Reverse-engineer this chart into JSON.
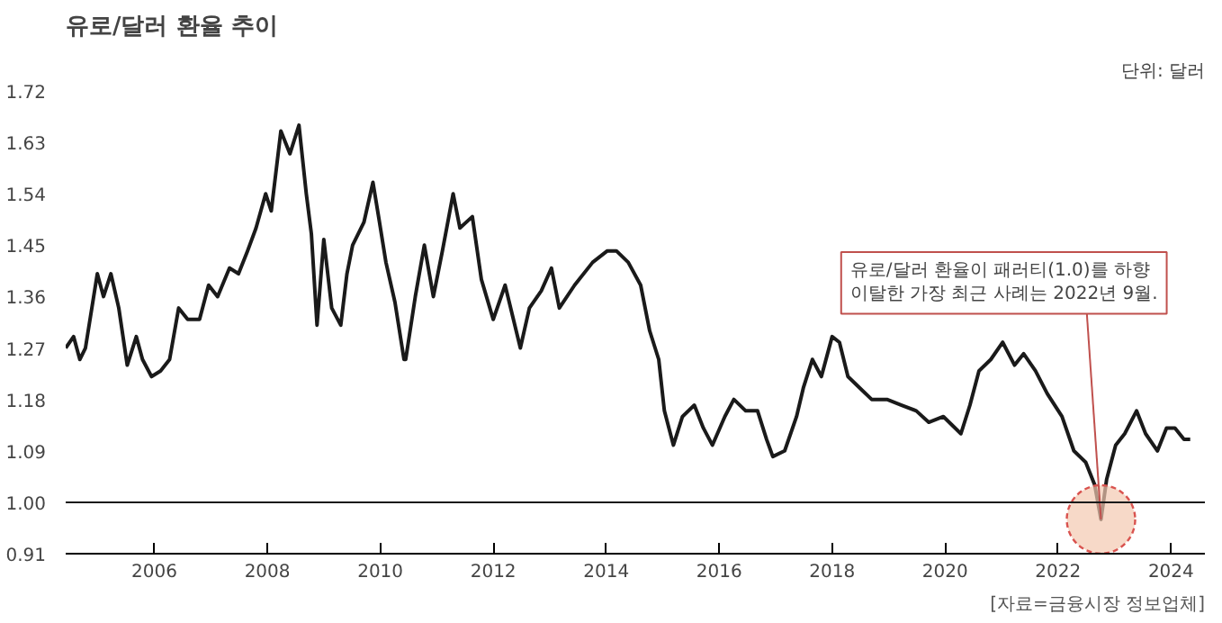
{
  "chart_data": {
    "type": "line",
    "title": "유로/달러 환율 추이",
    "ylabel": "단위: 달러",
    "x": [
      2004.43,
      2004.57,
      2004.68,
      2004.78,
      2004.99,
      2005.1,
      2005.23,
      2005.37,
      2005.52,
      2005.68,
      2005.79,
      2005.95,
      2006.11,
      2006.27,
      2006.43,
      2006.59,
      2006.8,
      2006.96,
      2007.12,
      2007.33,
      2007.49,
      2007.65,
      2007.8,
      2007.97,
      2008.07,
      2008.24,
      2008.4,
      2008.56,
      2008.69,
      2008.78,
      2008.88,
      2009.0,
      2009.14,
      2009.3,
      2009.41,
      2009.51,
      2009.71,
      2009.87,
      2009.97,
      2010.1,
      2010.26,
      2010.42,
      2010.45,
      2010.62,
      2010.78,
      2010.94,
      2011.1,
      2011.29,
      2011.41,
      2011.63,
      2011.79,
      2012.0,
      2012.21,
      2012.48,
      2012.64,
      2012.85,
      2013.03,
      2013.17,
      2013.44,
      2013.76,
      2014.02,
      2014.18,
      2014.39,
      2014.61,
      2014.77,
      2014.93,
      2015.03,
      2015.19,
      2015.35,
      2015.56,
      2015.72,
      2015.88,
      2016.1,
      2016.26,
      2016.47,
      2016.68,
      2016.84,
      2016.95,
      2017.16,
      2017.37,
      2017.49,
      2017.65,
      2017.81,
      2018.0,
      2018.13,
      2018.28,
      2018.49,
      2018.7,
      2018.97,
      2019.23,
      2019.49,
      2019.71,
      2019.97,
      2020.28,
      2020.44,
      2020.6,
      2020.81,
      2021.02,
      2021.23,
      2021.39,
      2021.6,
      2021.81,
      2022.07,
      2022.28,
      2022.49,
      2022.65,
      2022.76,
      2022.86,
      2023.02,
      2023.18,
      2023.39,
      2023.55,
      2023.76,
      2023.92,
      2024.07,
      2024.23,
      2024.34
    ],
    "series": [
      {
        "color": "#1a1a1a",
        "values": [
          1.27,
          1.29,
          1.25,
          1.27,
          1.4,
          1.36,
          1.4,
          1.34,
          1.24,
          1.29,
          1.25,
          1.22,
          1.23,
          1.25,
          1.34,
          1.32,
          1.32,
          1.38,
          1.36,
          1.41,
          1.4,
          1.44,
          1.48,
          1.54,
          1.51,
          1.65,
          1.61,
          1.66,
          1.54,
          1.47,
          1.31,
          1.46,
          1.34,
          1.31,
          1.4,
          1.45,
          1.49,
          1.56,
          1.5,
          1.42,
          1.35,
          1.25,
          1.25,
          1.36,
          1.45,
          1.36,
          1.44,
          1.54,
          1.48,
          1.5,
          1.39,
          1.32,
          1.38,
          1.27,
          1.34,
          1.37,
          1.41,
          1.34,
          1.38,
          1.42,
          1.44,
          1.44,
          1.42,
          1.38,
          1.3,
          1.25,
          1.16,
          1.1,
          1.15,
          1.17,
          1.13,
          1.1,
          1.15,
          1.18,
          1.16,
          1.16,
          1.11,
          1.08,
          1.09,
          1.15,
          1.2,
          1.25,
          1.22,
          1.29,
          1.28,
          1.22,
          1.2,
          1.18,
          1.18,
          1.17,
          1.16,
          1.14,
          1.15,
          1.12,
          1.17,
          1.23,
          1.25,
          1.28,
          1.24,
          1.26,
          1.23,
          1.19,
          1.15,
          1.09,
          1.07,
          1.03,
          0.97,
          1.04,
          1.1,
          1.12,
          1.16,
          1.12,
          1.09,
          1.13,
          1.13,
          1.11,
          1.11
        ]
      }
    ],
    "xlim": [
      2004.43,
      2024.6
    ],
    "ylim": [
      0.91,
      1.72
    ],
    "xticks": [
      2006,
      2008,
      2010,
      2012,
      2014,
      2016,
      2018,
      2020,
      2022,
      2024
    ],
    "yticks": [
      {
        "value": 0.91,
        "label": "0.91"
      },
      {
        "value": 1.0,
        "label": "1.00"
      },
      1.09,
      1.18,
      1.27,
      1.36,
      1.45,
      1.54,
      1.63,
      1.72
    ],
    "ref_lines": [
      {
        "axis": "y",
        "value": 1.0,
        "color": "#1a1a1a"
      }
    ],
    "annotations": [
      {
        "text": "유로/달러 환율이 패러티(1.0)를 하향\n이탈한 가장 최근 사례는 2022년 9월.",
        "x": 2022.76,
        "y": 0.97
      },
      "[자료=금융시장 정보업체]"
    ]
  }
}
